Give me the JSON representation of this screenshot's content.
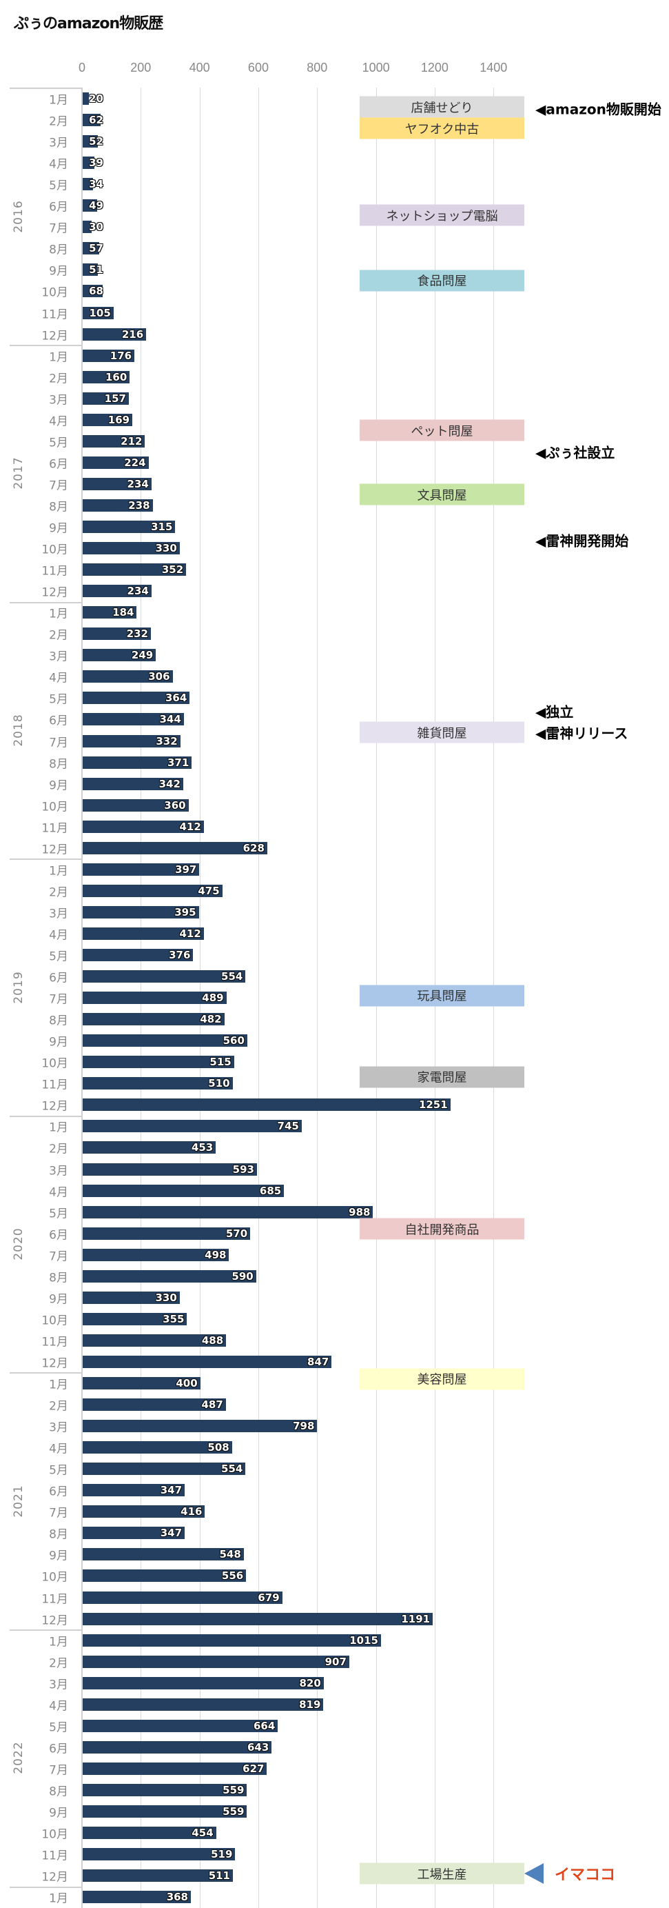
{
  "chart_data": {
    "type": "bar",
    "orientation": "horizontal",
    "title": "ぷぅのamazon物販歴",
    "xlim": [
      0,
      1500
    ],
    "x_ticks": [
      "0",
      "200",
      "400",
      "600",
      "800",
      "1000",
      "1200",
      "1400"
    ],
    "grid": true,
    "bar_color": "#243f60",
    "years": [
      {
        "year": "2016",
        "values": [
          20,
          62,
          52,
          39,
          34,
          49,
          30,
          57,
          51,
          68,
          105,
          216
        ]
      },
      {
        "year": "2017",
        "values": [
          176,
          160,
          157,
          169,
          212,
          224,
          234,
          238,
          315,
          330,
          352,
          234
        ]
      },
      {
        "year": "2018",
        "values": [
          184,
          232,
          249,
          306,
          364,
          344,
          332,
          371,
          342,
          360,
          412,
          628
        ]
      },
      {
        "year": "2019",
        "values": [
          397,
          475,
          395,
          412,
          376,
          554,
          489,
          482,
          560,
          515,
          510,
          1251
        ]
      },
      {
        "year": "2020",
        "values": [
          745,
          453,
          593,
          685,
          988,
          570,
          498,
          590,
          330,
          355,
          488,
          847
        ]
      },
      {
        "year": "2021",
        "values": [
          400,
          487,
          798,
          508,
          554,
          347,
          416,
          347,
          548,
          556,
          679,
          1191
        ]
      },
      {
        "year": "2022",
        "values": [
          1015,
          907,
          820,
          819,
          664,
          643,
          627,
          559,
          559,
          454,
          519,
          511
        ]
      },
      {
        "year": "2023",
        "values": [
          368
        ]
      }
    ],
    "month_labels": [
      "1月",
      "2月",
      "3月",
      "4月",
      "5月",
      "6月",
      "7月",
      "8月",
      "9月",
      "10月",
      "11月",
      "12月"
    ],
    "category_labels": [
      {
        "text": "店舗せどり",
        "color": "#dcdcdc"
      },
      {
        "text": "ヤフオク中古",
        "color": "#ffdf80"
      },
      {
        "text": "ネットショップ電脳",
        "color": "#dcd3e4"
      },
      {
        "text": "食品問屋",
        "color": "#a7d6e1"
      },
      {
        "text": "ペット問屋",
        "color": "#ecc9c9"
      },
      {
        "text": "文具問屋",
        "color": "#c7e6a6"
      },
      {
        "text": "雑貨問屋",
        "color": "#e6e1ef"
      },
      {
        "text": "玩具問屋",
        "color": "#aac7ea"
      },
      {
        "text": "家電問屋",
        "color": "#c0c0c0"
      },
      {
        "text": "自社開発商品",
        "color": "#efcaca"
      },
      {
        "text": "美容問屋",
        "color": "#ffffcc"
      },
      {
        "text": "工場生産",
        "color": "#e1ebd2"
      }
    ],
    "annotations": [
      "◀amazon物販開始",
      "◀ぷぅ社設立",
      "◀雷神開発開始",
      "◀独立",
      "◀雷神リリース"
    ],
    "current_marker": {
      "text": "イマココ",
      "arrow_color": "#4f81bd",
      "text_color": "#e0461c"
    }
  }
}
